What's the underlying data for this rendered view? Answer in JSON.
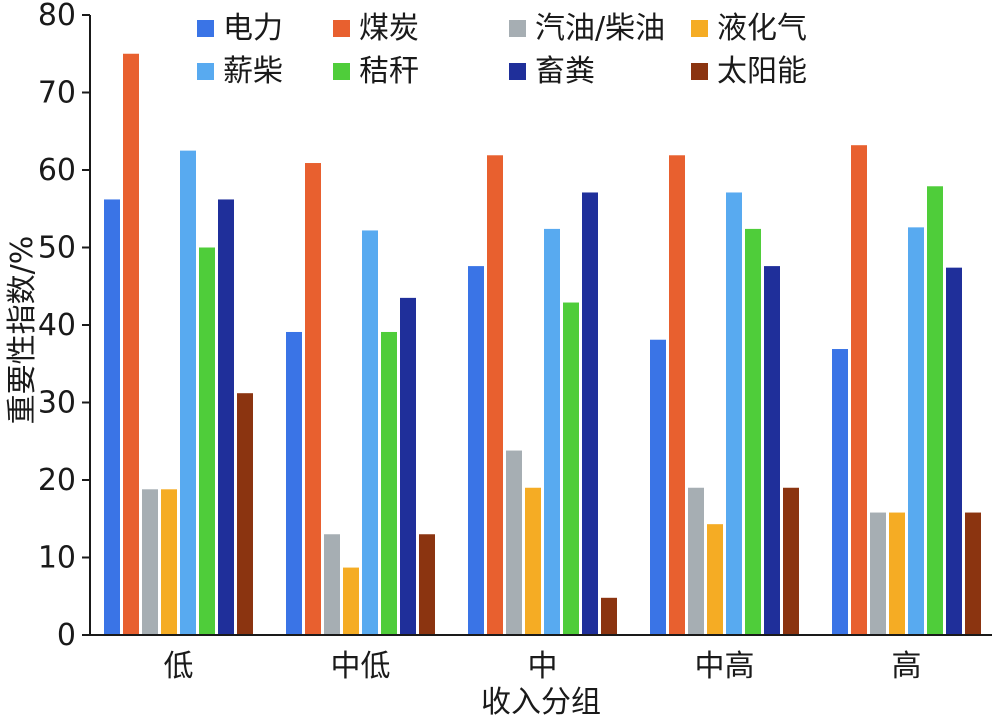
{
  "chart_data": {
    "type": "bar",
    "xlabel": "收入分组",
    "ylabel": "重要性指数/%",
    "ylim": [
      0,
      80
    ],
    "yticks": [
      0,
      10,
      20,
      30,
      40,
      50,
      60,
      70,
      80
    ],
    "categories": [
      "低",
      "中低",
      "中",
      "中高",
      "高"
    ],
    "legend_position": "top",
    "grid": false,
    "series": [
      {
        "name": "电力",
        "color": "#3a74e6",
        "values": [
          56.2,
          39.1,
          47.6,
          38.1,
          36.9
        ]
      },
      {
        "name": "煤炭",
        "color": "#e8602f",
        "values": [
          75.0,
          60.9,
          61.9,
          61.9,
          63.2
        ]
      },
      {
        "name": "汽油/柴油",
        "color": "#a6aeb3",
        "values": [
          18.8,
          13.0,
          23.8,
          19.0,
          15.8
        ]
      },
      {
        "name": "液化气",
        "color": "#f5ac24",
        "values": [
          18.8,
          8.7,
          19.0,
          14.3,
          15.8
        ]
      },
      {
        "name": "薪柴",
        "color": "#58aaf0",
        "values": [
          62.5,
          52.2,
          52.4,
          57.1,
          52.6
        ]
      },
      {
        "name": "秸秆",
        "color": "#4fcd3a",
        "values": [
          50.0,
          39.1,
          42.9,
          52.4,
          57.9
        ]
      },
      {
        "name": "畜粪",
        "color": "#1f2f9a",
        "values": [
          56.2,
          43.5,
          57.1,
          47.6,
          47.4
        ]
      },
      {
        "name": "太阳能",
        "color": "#8b3410",
        "values": [
          31.2,
          13.0,
          4.8,
          19.0,
          15.8
        ]
      }
    ]
  }
}
